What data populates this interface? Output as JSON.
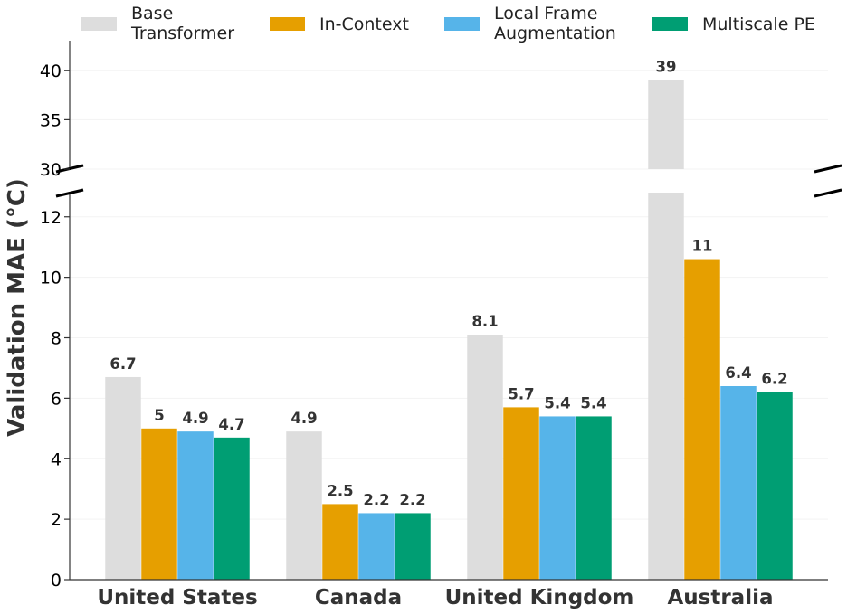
{
  "chart_data": {
    "type": "bar",
    "ylabel": "Validation MAE (°C)",
    "categories": [
      "United States",
      "Canada",
      "United Kingdom",
      "Australia"
    ],
    "series": [
      {
        "name": "Base\nTransformer",
        "color": "#dddddd",
        "values": [
          6.7,
          4.9,
          8.1,
          39
        ]
      },
      {
        "name": "In-Context",
        "color": "#e69f00",
        "values": [
          5.0,
          2.5,
          5.7,
          10.6
        ]
      },
      {
        "name": "Local Frame\nAugmentation",
        "color": "#56b4e9",
        "values": [
          4.9,
          2.2,
          5.4,
          6.4
        ]
      },
      {
        "name": "Multiscale PE",
        "color": "#009e73",
        "values": [
          4.7,
          2.2,
          5.4,
          6.2
        ]
      }
    ],
    "data_labels": [
      [
        "6.7",
        "4.9",
        "8.1",
        "39"
      ],
      [
        "5",
        "2.5",
        "5.7",
        "11"
      ],
      [
        "4.9",
        "2.2",
        "5.4",
        "6.4"
      ],
      [
        "4.7",
        "2.2",
        "5.4",
        "6.2"
      ]
    ],
    "y_axis_break": true,
    "lower_panel": {
      "ylim": [
        0,
        12.8
      ],
      "ticks": [
        0,
        2,
        4,
        6,
        8,
        10,
        12
      ]
    },
    "upper_panel": {
      "ylim": [
        30,
        43
      ],
      "ticks": [
        30,
        35,
        40
      ]
    },
    "legend": "top",
    "grid": true
  }
}
